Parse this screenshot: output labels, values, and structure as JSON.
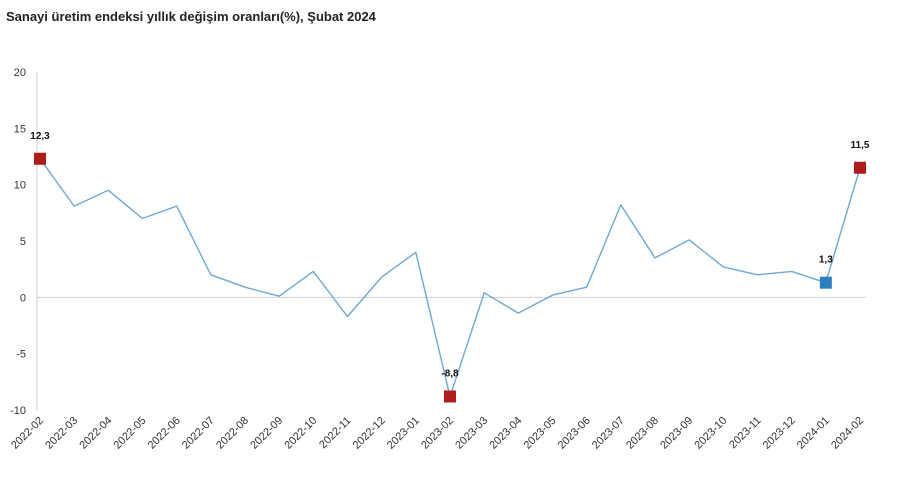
{
  "chart_data": {
    "type": "line",
    "title": "Sanayi üretim endeksi yıllık değişim oranları(%), Şubat 2024",
    "xlabel": "",
    "ylabel": "",
    "ylim": [
      -10,
      20
    ],
    "yticks": [
      20,
      15,
      10,
      5,
      0,
      -5,
      -10
    ],
    "categories": [
      "2022-02",
      "2022-03",
      "2022-04",
      "2022-05",
      "2022-06",
      "2022-07",
      "2022-08",
      "2022-09",
      "2022-10",
      "2022-11",
      "2022-12",
      "2023-01",
      "2023-02",
      "2023-03",
      "2023-04",
      "2023-05",
      "2023-06",
      "2023-07",
      "2023-08",
      "2023-09",
      "2023-10",
      "2023-11",
      "2023-12",
      "2024-01",
      "2024-02"
    ],
    "series": [
      {
        "values": [
          12.3,
          8.1,
          9.5,
          7.0,
          8.1,
          2.0,
          0.9,
          0.1,
          2.3,
          -1.7,
          1.8,
          4.0,
          -8.8,
          0.4,
          -1.4,
          0.2,
          0.9,
          8.2,
          3.5,
          5.1,
          2.7,
          2.0,
          2.3,
          1.3,
          11.5
        ],
        "color": "#6fa8d6"
      }
    ],
    "highlights": [
      {
        "index": 0,
        "label": "12,3",
        "color": "#b01c1c"
      },
      {
        "index": 12,
        "label": "-8,8",
        "color": "#b01c1c"
      },
      {
        "index": 23,
        "label": "1,3",
        "color": "#2e7fc0"
      },
      {
        "index": 24,
        "label": "11,5",
        "color": "#b01c1c"
      }
    ],
    "grid": false
  }
}
